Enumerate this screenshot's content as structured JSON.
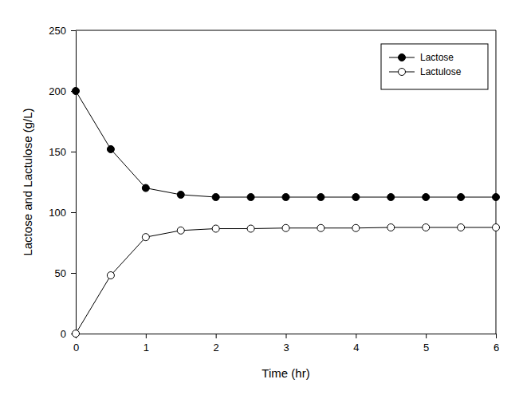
{
  "chart_data": {
    "type": "line",
    "x_label": "Time (hr)",
    "y_label": "Lactose and Lactulose (g/L)",
    "x": [
      0,
      0.5,
      1,
      1.5,
      2,
      2.5,
      3,
      3.5,
      4,
      4.5,
      5,
      5.5,
      6
    ],
    "series": [
      {
        "name": "Lactose",
        "color": "#000000",
        "marker": "filled-circle",
        "line_style": "solid",
        "values": [
          200,
          152,
          120,
          114.5,
          112.5,
          112.5,
          112.5,
          112.5,
          112.5,
          112.5,
          112.5,
          112.5,
          112.5
        ]
      },
      {
        "name": "Lactulose",
        "color": "#000000",
        "marker": "open-circle",
        "line_style": "solid",
        "values": [
          0,
          48,
          79.5,
          85,
          86.5,
          86.5,
          87,
          87,
          87,
          87.5,
          87.5,
          87.5,
          87.5
        ]
      }
    ],
    "xlim": [
      0,
      6
    ],
    "xticks": [
      0,
      1,
      2,
      3,
      4,
      5,
      6
    ],
    "ylim": [
      0,
      250
    ],
    "yticks": [
      0,
      50,
      100,
      150,
      200,
      250
    ],
    "grid": false,
    "legend": "upper right"
  }
}
